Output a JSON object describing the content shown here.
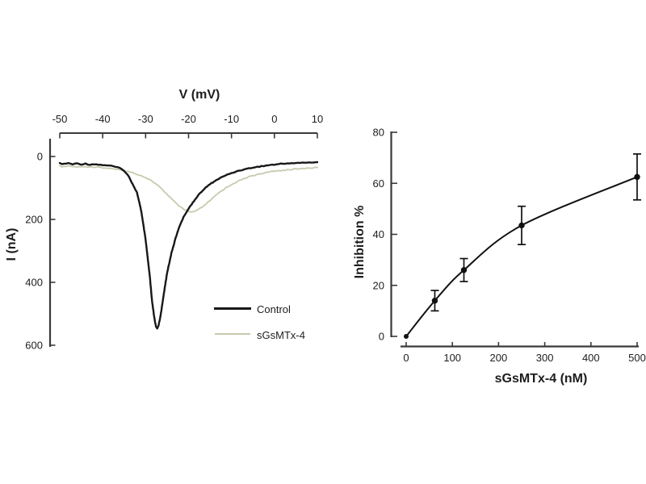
{
  "figure": {
    "background": "#ffffff"
  },
  "colors": {
    "axis": "#3a3a3a",
    "text": "#1d1d1d",
    "control_trace": "#181818",
    "sgsmtx_trace": "#c9c9ae",
    "marker": "#111111"
  },
  "chart_data": [
    {
      "type": "line",
      "description": "Current-voltage traces, control vs sGsMTx-4",
      "top_axis": {
        "label": "V (mV)",
        "ticks": [
          -50,
          -40,
          -30,
          -20,
          -10,
          0,
          10
        ],
        "range": [
          -50,
          10
        ]
      },
      "left_axis": {
        "label": "I (nA)",
        "ticks": [
          0,
          200,
          400,
          600
        ],
        "range": [
          0,
          600
        ],
        "direction": "inverted"
      },
      "legend": {
        "entries": [
          "Control",
          "sGsMTx-4"
        ]
      },
      "series": [
        {
          "name": "Control",
          "color": "#181818",
          "stroke_width": 2.4,
          "noise": 1.0,
          "points": [
            [
              -50,
              22
            ],
            [
              -49,
              24
            ],
            [
              -48,
              21
            ],
            [
              -47,
              25
            ],
            [
              -46,
              22
            ],
            [
              -45,
              25
            ],
            [
              -44,
              23
            ],
            [
              -43,
              26
            ],
            [
              -42,
              24
            ],
            [
              -41,
              26
            ],
            [
              -40,
              27
            ],
            [
              -39,
              28
            ],
            [
              -38,
              30
            ],
            [
              -37,
              33
            ],
            [
              -36,
              37
            ],
            [
              -35,
              45
            ],
            [
              -34,
              62
            ],
            [
              -33,
              88
            ],
            [
              -32,
              115
            ],
            [
              -31,
              175
            ],
            [
              -30,
              265
            ],
            [
              -29,
              385
            ],
            [
              -28.5,
              460
            ],
            [
              -28,
              510
            ],
            [
              -27.6,
              540
            ],
            [
              -27.3,
              548
            ],
            [
              -27,
              538
            ],
            [
              -26.6,
              512
            ],
            [
              -26.2,
              478
            ],
            [
              -25.8,
              440
            ],
            [
              -25.4,
              405
            ],
            [
              -25,
              370
            ],
            [
              -24,
              308
            ],
            [
              -23,
              258
            ],
            [
              -22,
              218
            ],
            [
              -21,
              188
            ],
            [
              -20,
              166
            ],
            [
              -19,
              146
            ],
            [
              -18,
              128
            ],
            [
              -17,
              112
            ],
            [
              -16,
              99
            ],
            [
              -15,
              88
            ],
            [
              -14,
              79
            ],
            [
              -13,
              71
            ],
            [
              -12,
              64
            ],
            [
              -11,
              58
            ],
            [
              -10,
              53
            ],
            [
              -9,
              48
            ],
            [
              -8,
              44
            ],
            [
              -7,
              41
            ],
            [
              -6,
              38
            ],
            [
              -5,
              35
            ],
            [
              -4,
              33
            ],
            [
              -3,
              31
            ],
            [
              -2,
              29
            ],
            [
              -1,
              27
            ],
            [
              0,
              26
            ],
            [
              1,
              24
            ],
            [
              2,
              23
            ],
            [
              3,
              22
            ],
            [
              4,
              21
            ],
            [
              5,
              21
            ],
            [
              6,
              20
            ],
            [
              7,
              20
            ],
            [
              8,
              19
            ],
            [
              9,
              19
            ],
            [
              10,
              18
            ]
          ]
        },
        {
          "name": "sGsMTx-4",
          "color": "#c9c9ae",
          "stroke_width": 1.8,
          "noise": 1.2,
          "points": [
            [
              -50,
              31
            ],
            [
              -49,
              33
            ],
            [
              -48,
              30
            ],
            [
              -47,
              32
            ],
            [
              -46,
              34
            ],
            [
              -45,
              31
            ],
            [
              -44,
              33
            ],
            [
              -43,
              32
            ],
            [
              -42,
              34
            ],
            [
              -41,
              33
            ],
            [
              -40,
              36
            ],
            [
              -39,
              37
            ],
            [
              -38,
              39
            ],
            [
              -37,
              41
            ],
            [
              -36,
              43
            ],
            [
              -35,
              45
            ],
            [
              -34,
              48
            ],
            [
              -33,
              52
            ],
            [
              -32,
              56
            ],
            [
              -31,
              61
            ],
            [
              -30,
              67
            ],
            [
              -29,
              74
            ],
            [
              -28,
              83
            ],
            [
              -27,
              94
            ],
            [
              -26,
              107
            ],
            [
              -25,
              120
            ],
            [
              -24,
              134
            ],
            [
              -23,
              148
            ],
            [
              -22,
              160
            ],
            [
              -21,
              169
            ],
            [
              -20,
              175
            ],
            [
              -19.5,
              177
            ],
            [
              -19,
              176
            ],
            [
              -18.5,
              174
            ],
            [
              -18,
              171
            ],
            [
              -17,
              163
            ],
            [
              -16,
              152
            ],
            [
              -15,
              140
            ],
            [
              -14,
              128
            ],
            [
              -13,
              116
            ],
            [
              -12,
              106
            ],
            [
              -11,
              97
            ],
            [
              -10,
              89
            ],
            [
              -9,
              82
            ],
            [
              -8,
              76
            ],
            [
              -7,
              70
            ],
            [
              -6,
              65
            ],
            [
              -5,
              61
            ],
            [
              -4,
              57
            ],
            [
              -3,
              54
            ],
            [
              -2,
              51
            ],
            [
              -1,
              49
            ],
            [
              0,
              47
            ],
            [
              1,
              45
            ],
            [
              2,
              44
            ],
            [
              3,
              42
            ],
            [
              4,
              41
            ],
            [
              5,
              40
            ],
            [
              6,
              39
            ],
            [
              7,
              38
            ],
            [
              8,
              37
            ],
            [
              9,
              36
            ],
            [
              10,
              35
            ]
          ]
        }
      ]
    },
    {
      "type": "scatter",
      "description": "Dose-response curve of inhibition vs sGsMTx-4 concentration",
      "xlabel": "sGsMTx-4 (nM)",
      "ylabel": "Inhibition %",
      "x_ticks": [
        0,
        100,
        200,
        300,
        400,
        500
      ],
      "y_ticks": [
        0,
        20,
        40,
        60,
        80
      ],
      "xlim": [
        0,
        500
      ],
      "ylim": [
        0,
        80
      ],
      "points": [
        {
          "x": 0,
          "y": 0,
          "err": 0
        },
        {
          "x": 62,
          "y": 14,
          "err": 4
        },
        {
          "x": 125,
          "y": 26,
          "err": 4.5
        },
        {
          "x": 250,
          "y": 43.5,
          "err": 7.5
        },
        {
          "x": 500,
          "y": 62.5,
          "err": 9
        }
      ]
    }
  ]
}
